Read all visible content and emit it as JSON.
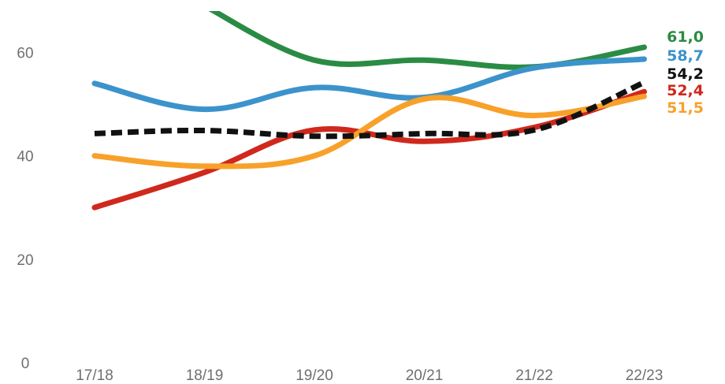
{
  "chart_data": {
    "type": "line",
    "title": "",
    "xlabel": "",
    "ylabel": "",
    "categories": [
      "17/18",
      "18/19",
      "19/20",
      "20/21",
      "21/22",
      "22/23"
    ],
    "ylim": [
      0,
      68
    ],
    "yticks": [
      0,
      20,
      40,
      60
    ],
    "grid": false,
    "legend": "none",
    "series": [
      {
        "color": "#2a8c44",
        "dashed": false,
        "values": [
          null,
          69.0,
          58.5,
          58.5,
          57.2,
          61.0
        ],
        "end_label": "61,0"
      },
      {
        "color": "#3c93cc",
        "dashed": false,
        "values": [
          54.0,
          49.0,
          53.2,
          51.3,
          57.0,
          58.7
        ],
        "end_label": "58,7"
      },
      {
        "color": "#111111",
        "dashed": true,
        "values": [
          44.3,
          44.9,
          43.8,
          44.3,
          45.0,
          54.2
        ],
        "end_label": "54,2"
      },
      {
        "color": "#d0281c",
        "dashed": false,
        "values": [
          30.0,
          36.8,
          45.0,
          42.8,
          45.5,
          52.4
        ],
        "end_label": "52,4"
      },
      {
        "color": "#f8a12a",
        "dashed": false,
        "values": [
          40.0,
          38.0,
          40.0,
          51.0,
          47.8,
          51.5
        ],
        "end_label": "51,5"
      }
    ]
  }
}
